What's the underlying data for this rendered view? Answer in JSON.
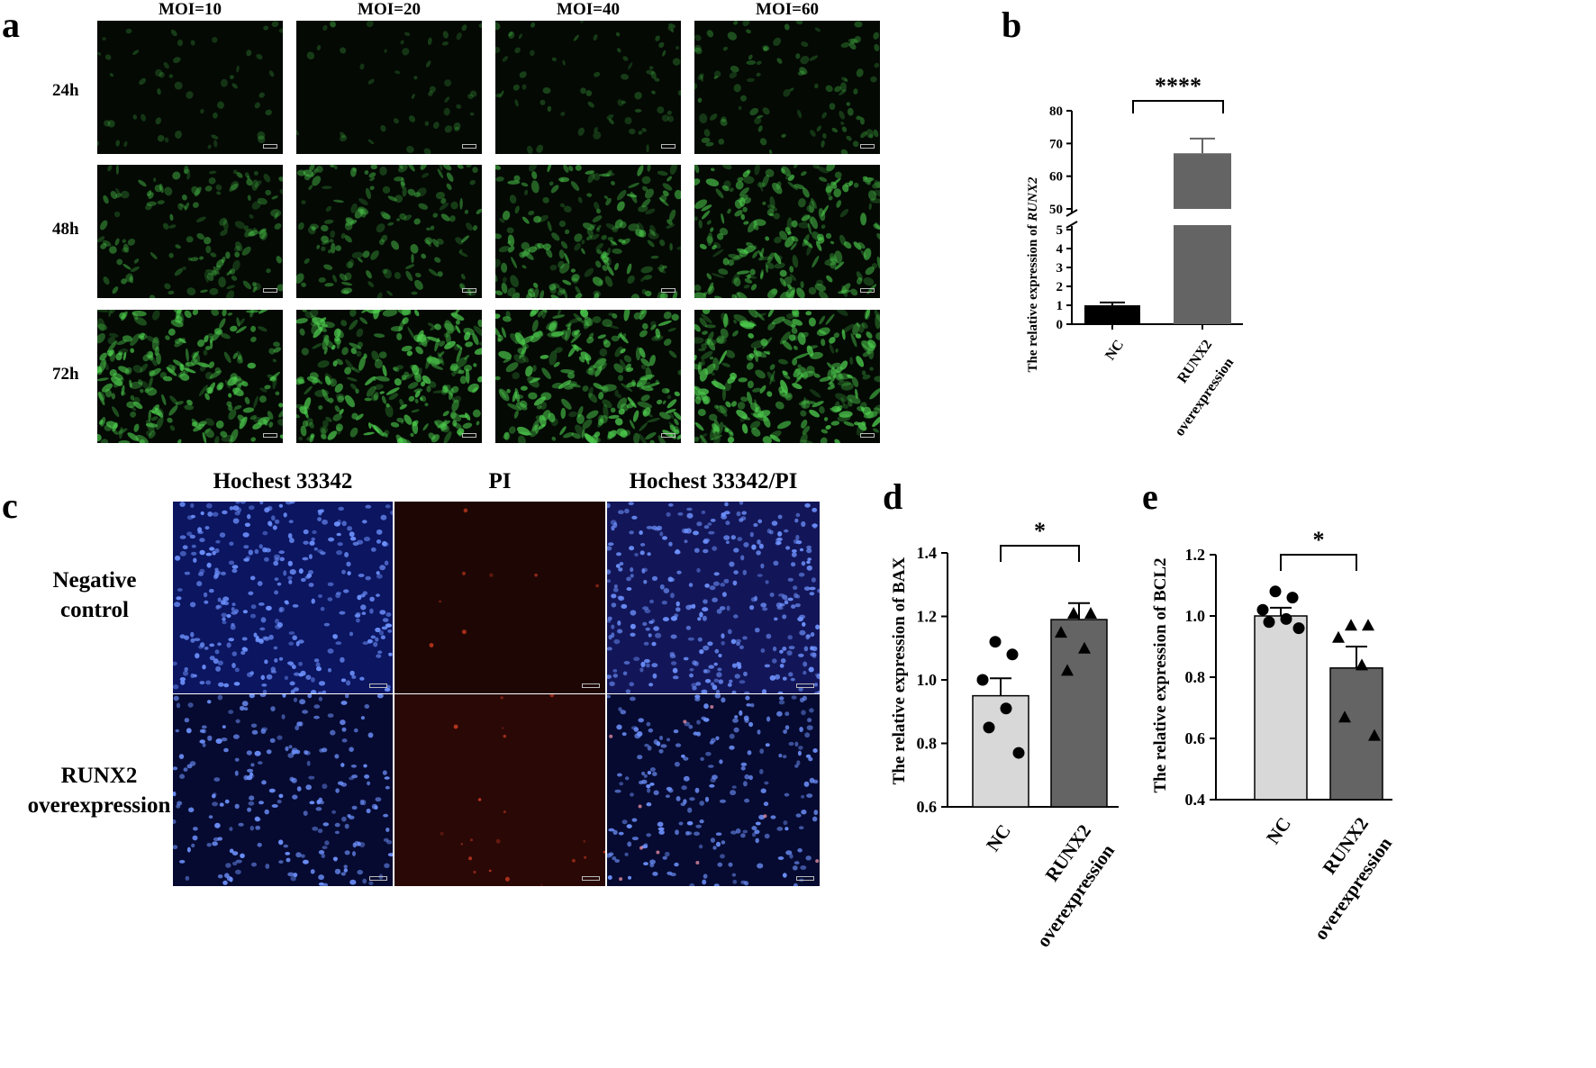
{
  "panels": {
    "a": {
      "letter": "a",
      "columns": [
        "MOI=10",
        "MOI=20",
        "MOI=40",
        "MOI=60"
      ],
      "rows": [
        "24h",
        "48h",
        "72h"
      ],
      "intensity": [
        [
          0.12,
          0.1,
          0.18,
          0.3
        ],
        [
          0.45,
          0.5,
          0.65,
          0.75
        ],
        [
          0.85,
          0.9,
          0.92,
          0.95
        ]
      ]
    },
    "b": {
      "letter": "b"
    },
    "c": {
      "letter": "c",
      "columns": [
        "Hochest 33342",
        "PI",
        "Hochest 33342/PI"
      ],
      "rows": [
        "Negative control",
        "RUNX2 overexpression"
      ]
    },
    "d": {
      "letter": "d"
    },
    "e": {
      "letter": "e"
    }
  },
  "colors": {
    "nc_bar_b": "#000000",
    "runx2_bar": "#646464",
    "nc_bar_light": "#d8d8d8",
    "gfp_green": "#4fd24f",
    "hoechst_blue": "#6f93ff",
    "pi_red": "#c53920"
  },
  "chart_data": [
    {
      "id": "b",
      "type": "bar",
      "categories": [
        "NC",
        "RUNX2 overexpression"
      ],
      "values": [
        1.0,
        67
      ],
      "errors": [
        0.15,
        4.5
      ],
      "ylabel": "The relative expression of RUNX2",
      "ylabel_italic": "RUNX2",
      "ylim": [
        0,
        80
      ],
      "axis_break": [
        5,
        50
      ],
      "yticks_lower": [
        0,
        1,
        2,
        3,
        4,
        5
      ],
      "yticks_upper": [
        50,
        60,
        70,
        80
      ],
      "significance": "****"
    },
    {
      "id": "d",
      "type": "bar",
      "categories": [
        "NC",
        "RUNX2 overexpression"
      ],
      "values": [
        0.95,
        1.19
      ],
      "errors": [
        0.055,
        0.052
      ],
      "points": [
        [
          1.12,
          1.08,
          1.0,
          0.91,
          0.85,
          0.77
        ],
        [
          1.21,
          1.21,
          1.15,
          1.1,
          1.03
        ]
      ],
      "markers": [
        "circle",
        "triangle"
      ],
      "ylabel": "The relative expression of BAX",
      "ylim": [
        0.6,
        1.4
      ],
      "yticks": [
        0.6,
        0.8,
        1.0,
        1.2,
        1.4
      ],
      "significance": "*"
    },
    {
      "id": "e",
      "type": "bar",
      "categories": [
        "NC",
        "RUNX2 overexpression"
      ],
      "values": [
        1.0,
        0.83
      ],
      "errors": [
        0.027,
        0.07
      ],
      "points": [
        [
          1.08,
          1.06,
          1.02,
          0.99,
          0.98,
          0.96
        ],
        [
          0.97,
          0.97,
          0.93,
          0.84,
          0.67,
          0.61
        ]
      ],
      "markers": [
        "circle",
        "triangle"
      ],
      "ylabel": "The relative expression of BCL2",
      "ylim": [
        0.4,
        1.2
      ],
      "yticks": [
        0.4,
        0.6,
        0.8,
        1.0,
        1.2
      ],
      "significance": "*"
    }
  ]
}
